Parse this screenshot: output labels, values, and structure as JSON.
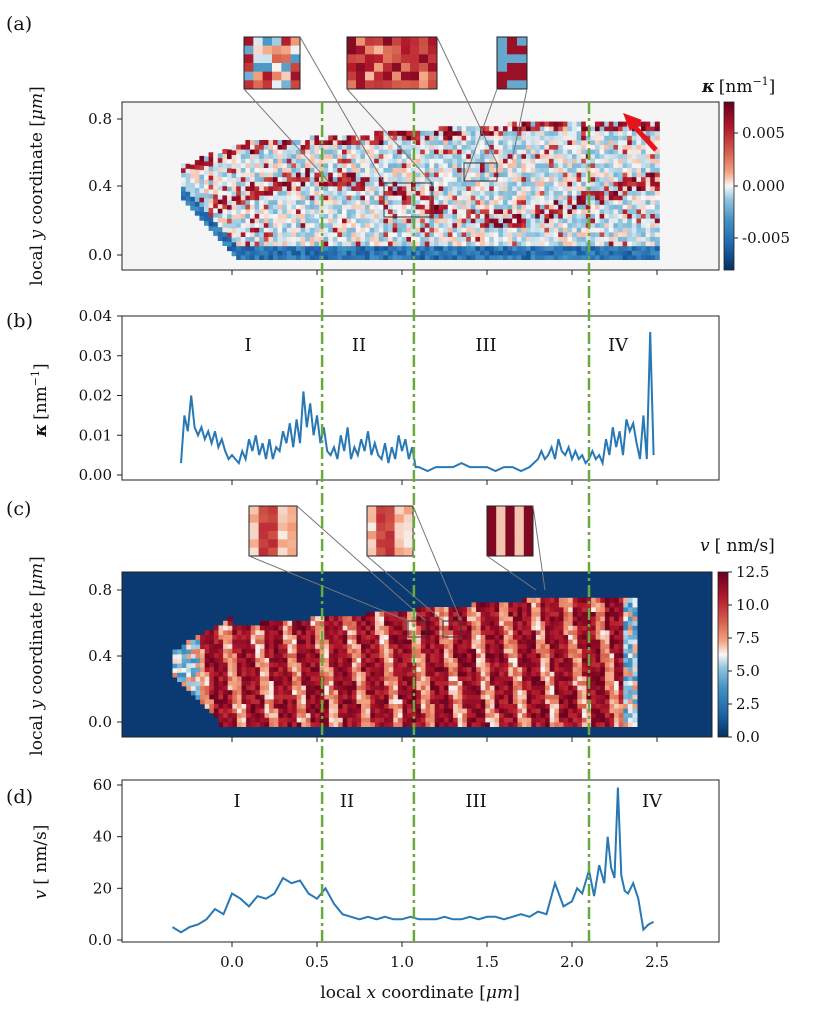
{
  "panels": {
    "a": {
      "tag": "(a)",
      "ylabel_pre": "local ",
      "ylabel_var": "y",
      "ylabel_post": " coordinate [",
      "ylabel_unit": "μm",
      "ylabel_end": "]",
      "yticks": [
        "0.0",
        "0.4",
        "0.8"
      ],
      "colorbar_title_var": "κ",
      "colorbar_title_unit": "[nm",
      "colorbar_title_exp": "−1",
      "colorbar_title_end": "]",
      "colorbar_ticks": [
        "0.005",
        "0.000",
        "-0.005"
      ]
    },
    "b": {
      "tag": "(b)",
      "ylabel_var": "κ",
      "ylabel_unit": "[nm",
      "ylabel_exp": "−1",
      "ylabel_end": "]",
      "yticks": [
        "0.00",
        "0.01",
        "0.02",
        "0.03",
        "0.04"
      ],
      "regions": [
        "I",
        "II",
        "III",
        "IV"
      ]
    },
    "c": {
      "tag": "(c)",
      "ylabel_pre": "local ",
      "ylabel_var": "y",
      "ylabel_post": " coordinate [",
      "ylabel_unit": "μm",
      "ylabel_end": "]",
      "yticks": [
        "0.0",
        "0.4",
        "0.8"
      ],
      "colorbar_title_var": "v",
      "colorbar_title_unit": "[ nm/s]",
      "colorbar_ticks": [
        "0.0",
        "2.5",
        "5.0",
        "7.5",
        "10.0",
        "12.5"
      ]
    },
    "d": {
      "tag": "(d)",
      "ylabel_var": "v",
      "ylabel_unit": "[ nm/s]",
      "yticks": [
        "0.0",
        "20",
        "40",
        "60"
      ],
      "regions": [
        "I",
        "II",
        "III",
        "IV"
      ]
    }
  },
  "xaxis": {
    "label_pre": "local ",
    "label_var": "x",
    "label_post": " coordinate [",
    "label_unit": "μm",
    "label_end": "]",
    "ticks": [
      "0.0",
      "0.5",
      "1.0",
      "1.5",
      "2.0",
      "2.5"
    ]
  },
  "colors": {
    "line": "#2878b5",
    "divider": "#6aaa3a",
    "arrow": "#e8141c",
    "map_background_a": "#f5f5f5",
    "map_background_c": "#0b3a73"
  },
  "chart_data": [
    {
      "panel": "a",
      "type": "heatmap",
      "quantity": "curvature κ",
      "x_range_um": [
        -0.3,
        2.5
      ],
      "ylim": [
        -0.07,
        0.92
      ],
      "color_range": [
        -0.008,
        0.008
      ],
      "colormap": "RdBu_r",
      "dividers_um": [
        0.53,
        1.07,
        2.1
      ],
      "insets": 3,
      "arrow": "top-right"
    },
    {
      "panel": "b",
      "type": "line",
      "ylim": [
        -0.002,
        0.04
      ],
      "x": [
        -0.3,
        -0.28,
        -0.26,
        -0.24,
        -0.22,
        -0.2,
        -0.18,
        -0.16,
        -0.14,
        -0.12,
        -0.1,
        -0.08,
        -0.06,
        -0.04,
        -0.02,
        0.0,
        0.02,
        0.04,
        0.06,
        0.08,
        0.1,
        0.12,
        0.14,
        0.16,
        0.18,
        0.2,
        0.22,
        0.24,
        0.26,
        0.28,
        0.3,
        0.32,
        0.34,
        0.36,
        0.38,
        0.4,
        0.42,
        0.44,
        0.46,
        0.48,
        0.5,
        0.52,
        0.54,
        0.56,
        0.58,
        0.6,
        0.62,
        0.64,
        0.66,
        0.68,
        0.7,
        0.72,
        0.74,
        0.76,
        0.78,
        0.8,
        0.82,
        0.84,
        0.86,
        0.88,
        0.9,
        0.92,
        0.94,
        0.96,
        0.98,
        1.0,
        1.02,
        1.04,
        1.06,
        1.08,
        1.1,
        1.15,
        1.2,
        1.25,
        1.3,
        1.35,
        1.4,
        1.45,
        1.5,
        1.55,
        1.6,
        1.65,
        1.7,
        1.75,
        1.8,
        1.82,
        1.84,
        1.86,
        1.88,
        1.9,
        1.92,
        1.94,
        1.96,
        1.98,
        2.0,
        2.02,
        2.04,
        2.06,
        2.08,
        2.1,
        2.12,
        2.14,
        2.16,
        2.18,
        2.2,
        2.22,
        2.24,
        2.26,
        2.28,
        2.3,
        2.32,
        2.34,
        2.36,
        2.38,
        2.4,
        2.42,
        2.44,
        2.46,
        2.48
      ],
      "y": [
        0.003,
        0.015,
        0.011,
        0.02,
        0.012,
        0.01,
        0.012,
        0.009,
        0.011,
        0.008,
        0.011,
        0.007,
        0.009,
        0.006,
        0.004,
        0.005,
        0.004,
        0.003,
        0.006,
        0.004,
        0.009,
        0.006,
        0.01,
        0.005,
        0.008,
        0.004,
        0.009,
        0.004,
        0.007,
        0.006,
        0.011,
        0.008,
        0.013,
        0.007,
        0.014,
        0.008,
        0.021,
        0.012,
        0.018,
        0.01,
        0.015,
        0.008,
        0.012,
        0.006,
        0.005,
        0.007,
        0.004,
        0.01,
        0.006,
        0.012,
        0.004,
        0.007,
        0.005,
        0.009,
        0.006,
        0.011,
        0.005,
        0.008,
        0.005,
        0.004,
        0.008,
        0.003,
        0.007,
        0.004,
        0.01,
        0.006,
        0.009,
        0.004,
        0.007,
        0.002,
        0.002,
        0.001,
        0.002,
        0.002,
        0.002,
        0.003,
        0.002,
        0.002,
        0.002,
        0.001,
        0.002,
        0.002,
        0.001,
        0.002,
        0.004,
        0.006,
        0.004,
        0.005,
        0.007,
        0.004,
        0.009,
        0.006,
        0.005,
        0.007,
        0.004,
        0.006,
        0.004,
        0.005,
        0.003,
        0.004,
        0.006,
        0.004,
        0.005,
        0.003,
        0.009,
        0.005,
        0.012,
        0.007,
        0.011,
        0.005,
        0.014,
        0.011,
        0.013,
        0.008,
        0.004,
        0.015,
        0.004,
        0.036,
        0.005
      ]
    },
    {
      "panel": "c",
      "type": "heatmap",
      "quantity": "velocity v",
      "x_range_um": [
        -0.45,
        2.45
      ],
      "ylim": [
        -0.07,
        0.92
      ],
      "color_range": [
        0.0,
        12.5
      ],
      "colormap": "RdBu_r",
      "dividers_um": [
        0.53,
        1.07,
        2.1
      ],
      "insets": 3
    },
    {
      "panel": "d",
      "type": "line",
      "ylim": [
        0,
        60
      ],
      "x": [
        -0.35,
        -0.3,
        -0.25,
        -0.2,
        -0.15,
        -0.1,
        -0.05,
        0.0,
        0.05,
        0.1,
        0.15,
        0.2,
        0.25,
        0.3,
        0.35,
        0.4,
        0.45,
        0.5,
        0.55,
        0.6,
        0.65,
        0.7,
        0.75,
        0.8,
        0.85,
        0.9,
        0.95,
        1.0,
        1.05,
        1.1,
        1.15,
        1.2,
        1.25,
        1.3,
        1.35,
        1.4,
        1.45,
        1.5,
        1.55,
        1.6,
        1.65,
        1.7,
        1.75,
        1.8,
        1.85,
        1.9,
        1.95,
        2.0,
        2.03,
        2.06,
        2.1,
        2.13,
        2.16,
        2.19,
        2.21,
        2.23,
        2.25,
        2.27,
        2.29,
        2.31,
        2.33,
        2.36,
        2.39,
        2.42,
        2.45,
        2.48
      ],
      "y": [
        5,
        3,
        5,
        6,
        8,
        12,
        10,
        18,
        16,
        13,
        17,
        16,
        18,
        24,
        22,
        23,
        18,
        16,
        20,
        14,
        10,
        9,
        8,
        9,
        8,
        9,
        8,
        8,
        9,
        8,
        8,
        8,
        9,
        8,
        8,
        9,
        8,
        9,
        9,
        8,
        9,
        10,
        9,
        11,
        10,
        22,
        13,
        15,
        20,
        18,
        27,
        17,
        29,
        22,
        40,
        28,
        24,
        59,
        25,
        19,
        18,
        22,
        16,
        4,
        6,
        7
      ]
    }
  ]
}
